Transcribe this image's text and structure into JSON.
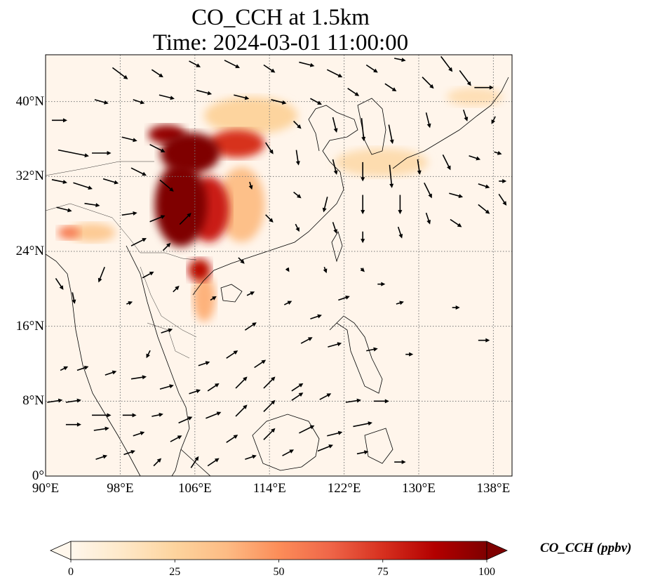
{
  "title": {
    "line1": "CO_CCH at 1.5km",
    "line2": "Time: 2024-03-01 11:00:00"
  },
  "map": {
    "extent": {
      "lon_min": 90,
      "lon_max": 140,
      "lat_min": 0,
      "lat_max": 45
    },
    "lon_ticks": [
      {
        "value": 90,
        "label": "90°E"
      },
      {
        "value": 98,
        "label": "98°E"
      },
      {
        "value": 106,
        "label": "106°E"
      },
      {
        "value": 114,
        "label": "114°E"
      },
      {
        "value": 122,
        "label": "122°E"
      },
      {
        "value": 130,
        "label": "130°E"
      },
      {
        "value": 138,
        "label": "138°E"
      }
    ],
    "lat_ticks": [
      {
        "value": 0,
        "label": "0°"
      },
      {
        "value": 8,
        "label": "8°N"
      },
      {
        "value": 16,
        "label": "16°N"
      },
      {
        "value": 24,
        "label": "24°N"
      },
      {
        "value": 32,
        "label": "32°N"
      },
      {
        "value": 40,
        "label": "40°N"
      }
    ],
    "gridlines": "dotted",
    "field_colormap": "OrRd",
    "background_color": "#fff5eb",
    "plumes": [
      {
        "lon": 104.5,
        "lat": 29.0,
        "value": 100,
        "rlon": 2.8,
        "rlat": 4.5
      },
      {
        "lon": 105.5,
        "lat": 34.5,
        "value": 100,
        "rlon": 3.2,
        "rlat": 2.2
      },
      {
        "lon": 103.0,
        "lat": 36.5,
        "value": 95,
        "rlon": 2.0,
        "rlat": 1.0
      },
      {
        "lon": 110.5,
        "lat": 35.5,
        "value": 75,
        "rlon": 3.0,
        "rlat": 1.5
      },
      {
        "lon": 107.5,
        "lat": 28.5,
        "value": 80,
        "rlon": 2.2,
        "rlat": 3.5
      },
      {
        "lon": 106.5,
        "lat": 22.0,
        "value": 85,
        "rlon": 1.2,
        "rlat": 1.2
      },
      {
        "lon": 107.0,
        "lat": 19.0,
        "value": 40,
        "rlon": 1.2,
        "rlat": 2.5
      },
      {
        "lon": 111.0,
        "lat": 29.0,
        "value": 35,
        "rlon": 2.5,
        "rlat": 4.0
      },
      {
        "lon": 112.0,
        "lat": 38.5,
        "value": 25,
        "rlon": 5.0,
        "rlat": 2.0
      },
      {
        "lon": 92.5,
        "lat": 26.0,
        "value": 55,
        "rlon": 1.2,
        "rlat": 0.7
      },
      {
        "lon": 95.0,
        "lat": 26.0,
        "value": 30,
        "rlon": 2.5,
        "rlat": 1.0
      },
      {
        "lon": 126.0,
        "lat": 33.5,
        "value": 20,
        "rlon": 5.0,
        "rlat": 1.5
      },
      {
        "lon": 136.0,
        "lat": 40.5,
        "value": 18,
        "rlon": 3.0,
        "rlat": 1.0
      }
    ],
    "wind_vectors": [
      [
        91.5,
        38,
        2,
        0
      ],
      [
        93,
        34.5,
        4,
        -0.8
      ],
      [
        96,
        34.5,
        2.5,
        0
      ],
      [
        99,
        36,
        2,
        -0.5
      ],
      [
        102,
        35,
        2,
        -1
      ],
      [
        91.5,
        31.5,
        2,
        -0.4
      ],
      [
        94,
        31,
        2.5,
        -0.8
      ],
      [
        97,
        31.5,
        2,
        -0.6
      ],
      [
        100,
        32.5,
        2,
        -1
      ],
      [
        103,
        31,
        1.8,
        -1.5
      ],
      [
        92,
        28.5,
        2,
        -0.5
      ],
      [
        95,
        29,
        2,
        -0.3
      ],
      [
        99,
        28,
        2,
        0.3
      ],
      [
        102,
        27.5,
        2,
        0.8
      ],
      [
        105,
        27.5,
        1.5,
        1.5
      ],
      [
        100,
        25,
        2,
        1
      ],
      [
        103,
        24.5,
        1,
        1
      ],
      [
        96,
        21.5,
        -0.8,
        -2
      ],
      [
        93,
        19,
        0.3,
        -1.5
      ],
      [
        91.5,
        20.5,
        1,
        -1.5
      ],
      [
        101,
        21.5,
        1.5,
        0.8
      ],
      [
        99,
        18.5,
        0.8,
        0.3
      ],
      [
        103,
        15.5,
        1.5,
        0.5
      ],
      [
        101,
        13,
        -0.5,
        -1
      ],
      [
        92,
        11.5,
        1,
        0.5
      ],
      [
        94,
        11.5,
        1.5,
        0.5
      ],
      [
        97,
        11,
        1.5,
        0.5
      ],
      [
        100,
        10.5,
        2,
        0.3
      ],
      [
        103,
        9.5,
        1.8,
        0.5
      ],
      [
        106,
        9,
        1.5,
        0.5
      ],
      [
        108,
        9.5,
        1.5,
        1
      ],
      [
        111,
        10,
        1.5,
        1.5
      ],
      [
        114,
        10,
        1.5,
        1.5
      ],
      [
        117,
        9.5,
        1.5,
        1
      ],
      [
        91,
        8,
        2,
        0.3
      ],
      [
        93,
        8,
        2,
        0.3
      ],
      [
        96,
        6.5,
        2.5,
        0
      ],
      [
        99,
        6.5,
        1.8,
        0
      ],
      [
        102,
        6.5,
        1.5,
        0.3
      ],
      [
        105,
        6,
        1.8,
        0.8
      ],
      [
        108,
        6.5,
        2,
        0.8
      ],
      [
        111,
        7,
        1.5,
        1.5
      ],
      [
        114,
        7.5,
        1.5,
        1.5
      ],
      [
        117,
        8.5,
        1.5,
        1
      ],
      [
        120,
        8.5,
        1.5,
        0.8
      ],
      [
        123,
        8,
        2,
        0.3
      ],
      [
        126,
        8,
        2,
        0
      ],
      [
        93,
        5.5,
        2,
        0
      ],
      [
        96,
        5,
        2,
        0.3
      ],
      [
        100,
        4.5,
        1.5,
        0.5
      ],
      [
        104,
        4,
        1.5,
        0.8
      ],
      [
        110,
        4,
        1.5,
        1
      ],
      [
        114,
        4.5,
        1.5,
        1.5
      ],
      [
        118,
        5,
        2,
        1
      ],
      [
        121,
        4.5,
        2,
        0.5
      ],
      [
        124,
        5.5,
        2.5,
        0.5
      ],
      [
        96,
        2,
        1.5,
        0.5
      ],
      [
        99,
        2.5,
        1.5,
        0.5
      ],
      [
        102,
        1.5,
        1,
        1
      ],
      [
        106,
        1.5,
        1,
        1.5
      ],
      [
        108,
        1.5,
        1.5,
        1
      ],
      [
        112,
        2,
        1.5,
        0.5
      ],
      [
        116,
        2.5,
        1.5,
        0.8
      ],
      [
        120,
        3,
        2,
        0.8
      ],
      [
        124,
        2.5,
        1.5,
        0.3
      ],
      [
        128,
        1.5,
        1.5,
        0
      ],
      [
        98,
        43,
        2,
        -1.5
      ],
      [
        102,
        43,
        1.5,
        -1
      ],
      [
        106,
        44,
        1.5,
        -0.8
      ],
      [
        110,
        44,
        2,
        -1
      ],
      [
        114,
        43.5,
        1.5,
        -1
      ],
      [
        118,
        44,
        2,
        -0.5
      ],
      [
        121,
        43,
        2,
        -1
      ],
      [
        125,
        43.5,
        1.5,
        -1
      ],
      [
        128,
        44.5,
        1.5,
        -0.3
      ],
      [
        133,
        44,
        1.5,
        -2
      ],
      [
        96,
        40,
        1.8,
        -0.5
      ],
      [
        100,
        40,
        1.5,
        -0.5
      ],
      [
        103,
        40.5,
        2,
        -0.5
      ],
      [
        107,
        41,
        2,
        -0.5
      ],
      [
        111,
        40.5,
        2,
        -0.5
      ],
      [
        115,
        40,
        2,
        -0.5
      ],
      [
        119,
        40,
        1.5,
        -0.8
      ],
      [
        123,
        41,
        1.5,
        -1
      ],
      [
        127,
        41.5,
        1.5,
        -1
      ],
      [
        131,
        42,
        1.5,
        -1.5
      ],
      [
        135,
        42.5,
        1.5,
        -2
      ],
      [
        137,
        41.5,
        2.5,
        0
      ],
      [
        117,
        37.5,
        1,
        -1
      ],
      [
        121,
        37.5,
        0.5,
        -2
      ],
      [
        124,
        37,
        0.3,
        -3
      ],
      [
        127,
        36.5,
        0.5,
        -2.5
      ],
      [
        131,
        38,
        0.5,
        -2
      ],
      [
        135,
        38.5,
        0.5,
        -1.5
      ],
      [
        138,
        38,
        -0.5,
        -1
      ],
      [
        114,
        35,
        1,
        -1.5
      ],
      [
        117,
        34,
        0.3,
        -2
      ],
      [
        121,
        33,
        0.5,
        -2
      ],
      [
        124,
        32.5,
        0,
        -2.5
      ],
      [
        127,
        32,
        0.3,
        -3
      ],
      [
        130,
        33,
        0.3,
        -2
      ],
      [
        133,
        33.5,
        1,
        -2
      ],
      [
        136,
        34,
        1.5,
        -0.5
      ],
      [
        138.5,
        34.5,
        1,
        -0.3
      ],
      [
        112,
        31,
        0.3,
        -1
      ],
      [
        117,
        30,
        1,
        -0.8
      ],
      [
        120,
        29,
        -0.5,
        -2
      ],
      [
        124,
        29,
        0,
        -2.5
      ],
      [
        128,
        29,
        0,
        -2.5
      ],
      [
        131,
        30.5,
        1,
        -2
      ],
      [
        134,
        30,
        1.8,
        -0.5
      ],
      [
        137,
        31,
        1.5,
        -0.5
      ],
      [
        139,
        31.5,
        1,
        0
      ],
      [
        114,
        27.5,
        1,
        -1
      ],
      [
        117,
        26.5,
        0.5,
        -1
      ],
      [
        121,
        26.5,
        0.5,
        -1.5
      ],
      [
        124,
        25.5,
        0,
        -1.5
      ],
      [
        128,
        26,
        0.5,
        -1.5
      ],
      [
        131,
        27.5,
        0.5,
        -1.5
      ],
      [
        134,
        27,
        1.5,
        -1
      ],
      [
        137,
        28.5,
        1.5,
        -1.2
      ],
      [
        139,
        29.5,
        1,
        -1.5
      ],
      [
        116,
        22,
        0.3,
        -0.5
      ],
      [
        120,
        22,
        0.3,
        -0.8
      ],
      [
        124,
        22,
        0.5,
        -0.5
      ],
      [
        111,
        23,
        0.8,
        -0.8
      ],
      [
        112,
        19.5,
        1,
        0.5
      ],
      [
        116,
        18.5,
        1,
        0.5
      ],
      [
        119,
        17,
        1.5,
        0.5
      ],
      [
        122,
        19,
        1.5,
        0.5
      ],
      [
        126,
        20.5,
        1,
        0
      ],
      [
        128,
        18.5,
        1,
        0.3
      ],
      [
        134,
        18,
        1,
        0
      ],
      [
        137,
        14.5,
        1.5,
        0
      ],
      [
        104,
        20,
        0.8,
        0.8
      ],
      [
        108,
        19,
        0.8,
        0.5
      ],
      [
        112,
        16,
        1.5,
        1
      ],
      [
        118,
        14.5,
        1.5,
        0.8
      ],
      [
        121,
        14,
        1.8,
        0.5
      ],
      [
        125,
        13.5,
        1.5,
        0.3
      ],
      [
        129,
        13,
        1,
        0
      ],
      [
        110,
        13,
        1.5,
        1
      ],
      [
        113,
        12,
        1.5,
        1
      ],
      [
        107,
        12,
        1.5,
        0.5
      ]
    ]
  },
  "colorbar": {
    "label": "CO_CCH (ppbv)",
    "min": 0,
    "max": 100,
    "ticks": [
      {
        "value": 0,
        "label": "0"
      },
      {
        "value": 25,
        "label": "25"
      },
      {
        "value": 50,
        "label": "50"
      },
      {
        "value": 75,
        "label": "75"
      },
      {
        "value": 100,
        "label": "100"
      }
    ],
    "extend": "both",
    "stops": [
      "#fff7ec",
      "#fee8c8",
      "#fdd49e",
      "#fdbb84",
      "#fc8d59",
      "#ef6548",
      "#d7301f",
      "#b30000",
      "#7f0000"
    ]
  }
}
